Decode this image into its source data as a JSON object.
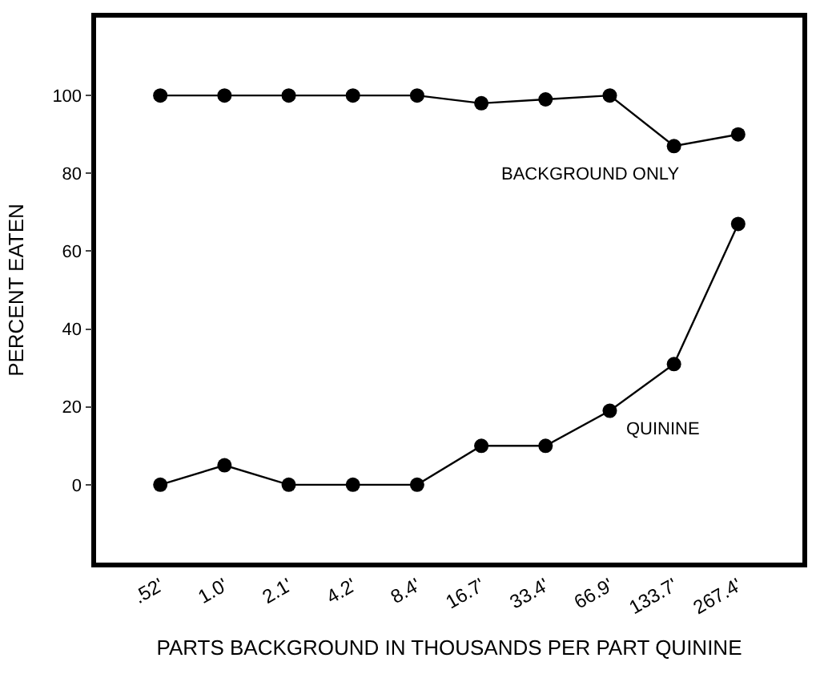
{
  "chart_data": {
    "type": "line",
    "xlabel": "PARTS BACKGROUND IN THOUSANDS PER PART QUININE",
    "ylabel": "PERCENT EATEN",
    "categories": [
      ".52'",
      "1.0'",
      "2.1'",
      "4.2'",
      "8.4'",
      "16.7'",
      "33.4'",
      "66.9'",
      "133.7'",
      "267.4'"
    ],
    "series": [
      {
        "name": "BACKGROUND ONLY",
        "color": "#000000",
        "values": [
          100,
          100,
          100,
          100,
          100,
          98,
          99,
          100,
          87,
          90
        ]
      },
      {
        "name": "QUININE",
        "color": "#000000",
        "values": [
          0,
          5,
          0,
          0,
          0,
          10,
          10,
          19,
          31,
          67
        ]
      }
    ],
    "ylim": [
      -20,
      120
    ],
    "yticks": [
      0,
      20,
      40,
      60,
      80,
      100
    ],
    "marker": "circle",
    "line_style": "solid",
    "legend": false
  }
}
